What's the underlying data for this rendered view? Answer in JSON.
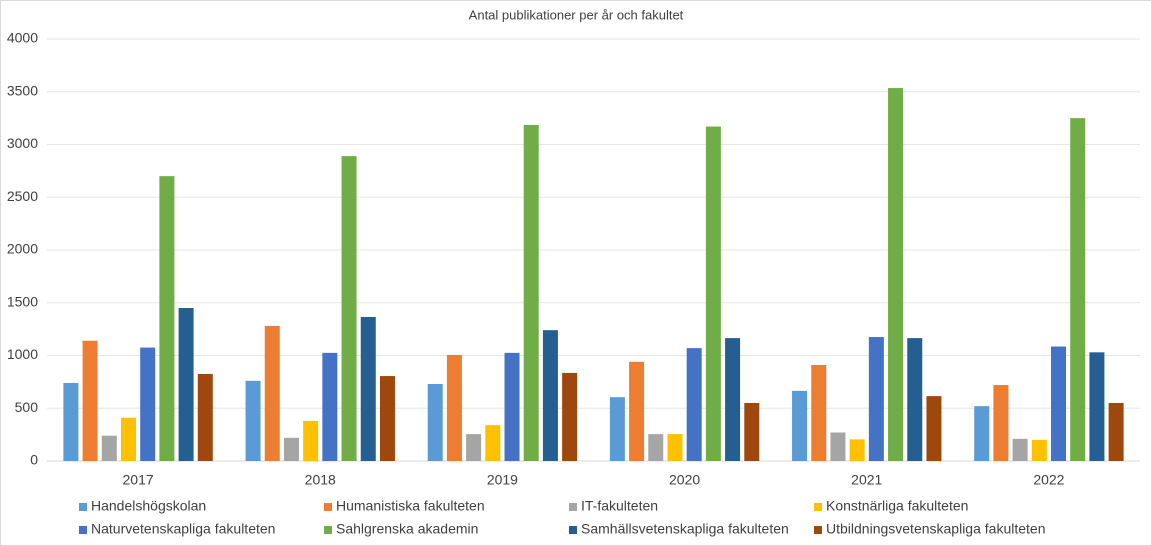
{
  "chart_data": {
    "type": "bar",
    "title": "Antal publikationer per år och fakultet",
    "categories": [
      "2017",
      "2018",
      "2019",
      "2020",
      "2021",
      "2022"
    ],
    "series": [
      {
        "name": "Handelshögskolan",
        "color": "#5b9bd5",
        "values": [
          740,
          760,
          730,
          605,
          665,
          520
        ]
      },
      {
        "name": "Humanistiska fakulteten",
        "color": "#ed7d31",
        "values": [
          1140,
          1280,
          1005,
          940,
          910,
          720
        ]
      },
      {
        "name": "IT-fakulteten",
        "color": "#a5a5a5",
        "values": [
          240,
          220,
          255,
          255,
          270,
          210
        ]
      },
      {
        "name": "Konstnärliga fakulteten",
        "color": "#ffc000",
        "values": [
          410,
          380,
          340,
          255,
          205,
          200
        ]
      },
      {
        "name": "Naturvetenskapliga fakulteten",
        "color": "#4472c4",
        "values": [
          1075,
          1025,
          1025,
          1070,
          1175,
          1085
        ]
      },
      {
        "name": "Sahlgrenska akademin",
        "color": "#70ad47",
        "values": [
          2700,
          2890,
          3185,
          3170,
          3535,
          3250
        ]
      },
      {
        "name": "Samhällsvetenskapliga fakulteten",
        "color": "#255e91",
        "values": [
          1450,
          1365,
          1240,
          1165,
          1165,
          1030
        ]
      },
      {
        "name": "Utbildningsvetenskapliga fakulteten",
        "color": "#9e480e",
        "values": [
          825,
          805,
          835,
          550,
          615,
          550
        ]
      }
    ],
    "ylim": [
      0,
      4000
    ],
    "yticks": [
      0,
      500,
      1000,
      1500,
      2000,
      2500,
      3000,
      3500,
      4000
    ],
    "grid": true,
    "legend": "bottom"
  }
}
